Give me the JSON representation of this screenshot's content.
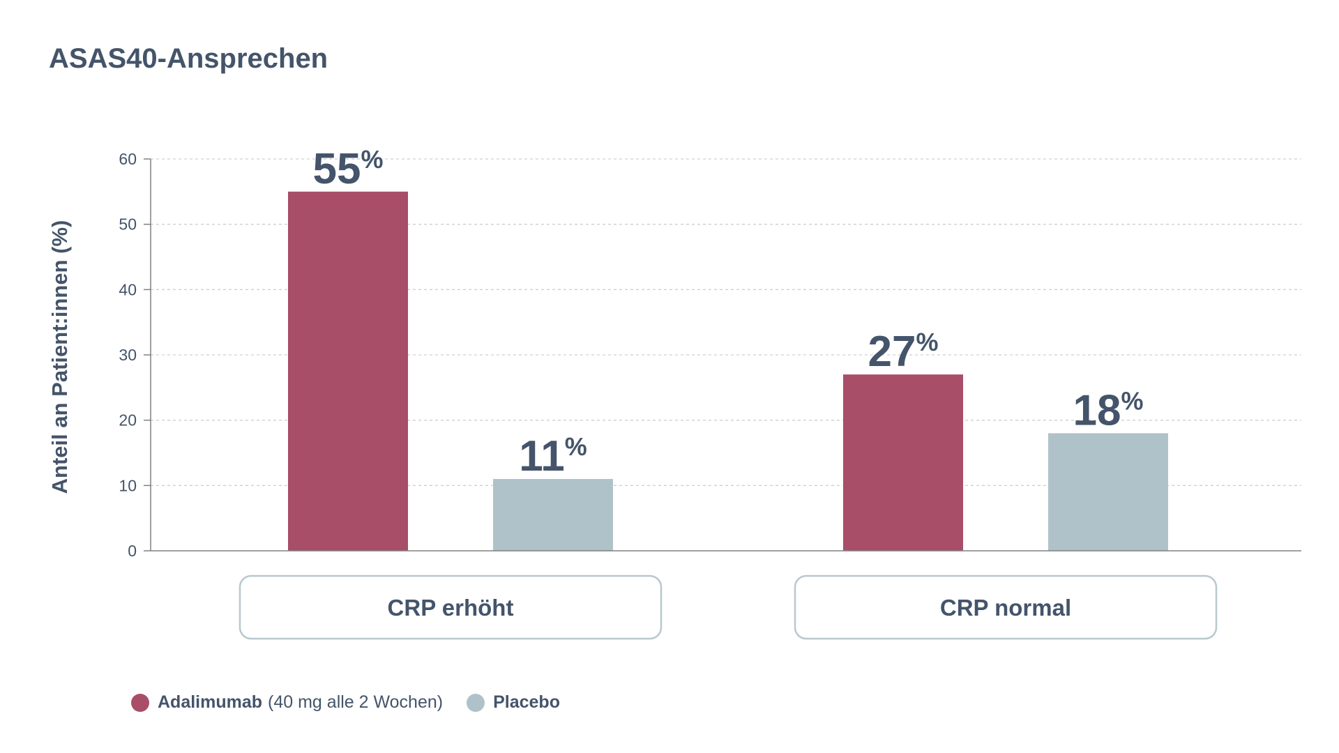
{
  "chart_data": {
    "type": "bar",
    "title": "ASAS40-Ansprechen",
    "ylabel": "Anteil an Patient:innen (%)",
    "xlabel": "",
    "ylim": [
      0,
      60
    ],
    "yticks": [
      "0",
      "10",
      "20",
      "30",
      "40",
      "50",
      "60"
    ],
    "categories": [
      "CRP erhöht",
      "CRP normal"
    ],
    "series": [
      {
        "name": "Adalimumab",
        "legend_note": "(40 mg alle 2 Wochen)",
        "color": "#a84e68",
        "values": [
          55,
          27
        ],
        "labels": [
          "55",
          "27"
        ]
      },
      {
        "name": "Placebo",
        "legend_note": "",
        "color": "#b0c2c9",
        "values": [
          11,
          18
        ],
        "labels": [
          "11",
          "18"
        ]
      }
    ],
    "value_suffix": "%",
    "grid": true,
    "legend_position": "bottom-left"
  },
  "colors": {
    "text": "#44546a",
    "axis": "#808080",
    "grid": "#cfcfcf",
    "category_box_border": "#b8c8ce"
  }
}
